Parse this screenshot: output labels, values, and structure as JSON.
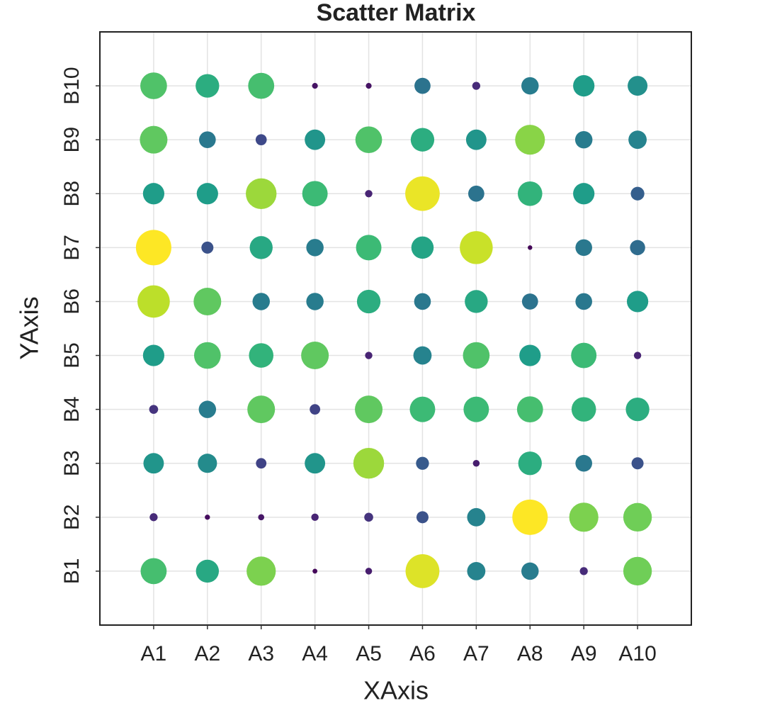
{
  "chart_data": {
    "type": "bubble",
    "title": "Scatter Matrix",
    "x_label": "XAxis",
    "y_label": "YAxis",
    "categories": [
      "A1",
      "A2",
      "A3",
      "A4",
      "A5",
      "A6",
      "A7",
      "A8",
      "A9",
      "A10"
    ],
    "y_categories": [
      "B1",
      "B2",
      "B3",
      "B4",
      "B5",
      "B6",
      "B7",
      "B8",
      "B9",
      "B10"
    ],
    "colormap": "viridis",
    "grid": true,
    "values": [
      [
        0.7,
        0.6,
        0.8,
        0.02,
        0.08,
        0.95,
        0.45,
        0.42,
        0.12,
        0.78
      ],
      [
        0.12,
        0.03,
        0.06,
        0.1,
        0.15,
        0.25,
        0.45,
        1.0,
        0.8,
        0.78
      ],
      [
        0.52,
        0.48,
        0.2,
        0.52,
        0.85,
        0.28,
        0.08,
        0.62,
        0.4,
        0.25
      ],
      [
        0.15,
        0.42,
        0.75,
        0.2,
        0.75,
        0.68,
        0.68,
        0.7,
        0.65,
        0.62
      ],
      [
        0.55,
        0.72,
        0.65,
        0.75,
        0.1,
        0.45,
        0.72,
        0.55,
        0.68,
        0.1
      ],
      [
        0.9,
        0.75,
        0.42,
        0.42,
        0.62,
        0.4,
        0.6,
        0.38,
        0.4,
        0.55
      ],
      [
        1.0,
        0.25,
        0.6,
        0.42,
        0.68,
        0.58,
        0.92,
        0.01,
        0.4,
        0.35
      ],
      [
        0.55,
        0.55,
        0.85,
        0.68,
        0.1,
        0.97,
        0.38,
        0.65,
        0.55,
        0.3
      ],
      [
        0.75,
        0.4,
        0.22,
        0.52,
        0.72,
        0.62,
        0.52,
        0.82,
        0.42,
        0.45
      ],
      [
        0.72,
        0.62,
        0.7,
        0.05,
        0.05,
        0.38,
        0.12,
        0.42,
        0.55,
        0.5
      ]
    ]
  }
}
